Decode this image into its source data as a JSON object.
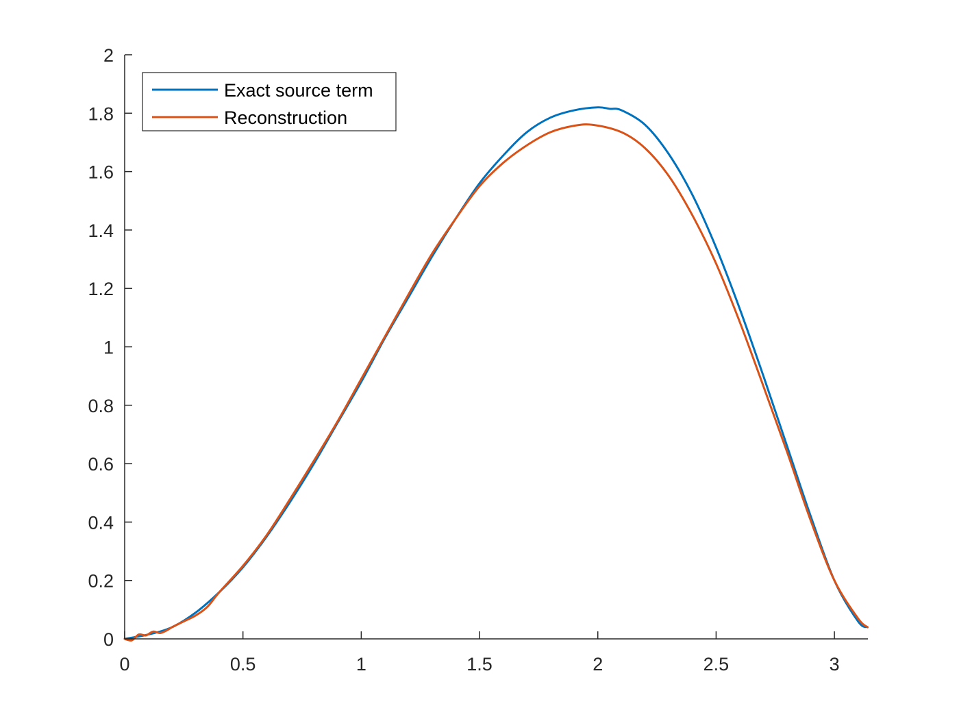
{
  "chart_data": {
    "type": "line",
    "title": "",
    "xlabel": "",
    "ylabel": "",
    "xlim": [
      0,
      3.1416
    ],
    "ylim": [
      0,
      2
    ],
    "xticks": [
      0,
      0.5,
      1,
      1.5,
      2,
      2.5,
      3
    ],
    "xtick_labels": [
      "0",
      "0.5",
      "1",
      "1.5",
      "2",
      "2.5",
      "3"
    ],
    "yticks": [
      0,
      0.2,
      0.4,
      0.6,
      0.8,
      1,
      1.2,
      1.4,
      1.6,
      1.8,
      2
    ],
    "ytick_labels": [
      "0",
      "0.2",
      "0.4",
      "0.6",
      "0.8",
      "1",
      "1.2",
      "1.4",
      "1.6",
      "1.8",
      "2"
    ],
    "grid": false,
    "legend_position": "top-left",
    "series": [
      {
        "name": "Exact source term",
        "color": "#0072BD",
        "x": [
          0,
          0.1,
          0.2,
          0.3,
          0.4,
          0.5,
          0.6,
          0.7,
          0.8,
          0.9,
          1.0,
          1.1,
          1.2,
          1.3,
          1.4,
          1.5,
          1.6,
          1.7,
          1.8,
          1.9,
          2.0,
          2.05,
          2.1,
          2.2,
          2.3,
          2.4,
          2.5,
          2.6,
          2.7,
          2.8,
          2.9,
          3.0,
          3.1,
          3.14
        ],
        "y": [
          0,
          0.015,
          0.04,
          0.09,
          0.16,
          0.245,
          0.35,
          0.47,
          0.6,
          0.74,
          0.88,
          1.03,
          1.17,
          1.31,
          1.44,
          1.56,
          1.655,
          1.735,
          1.785,
          1.81,
          1.82,
          1.815,
          1.81,
          1.76,
          1.66,
          1.52,
          1.34,
          1.13,
          0.9,
          0.66,
          0.42,
          0.2,
          0.06,
          0.04
        ]
      },
      {
        "name": "Reconstruction",
        "color": "#D95319",
        "x": [
          0,
          0.03,
          0.06,
          0.09,
          0.12,
          0.15,
          0.18,
          0.2,
          0.25,
          0.3,
          0.35,
          0.4,
          0.5,
          0.6,
          0.7,
          0.8,
          0.9,
          1.0,
          1.1,
          1.2,
          1.3,
          1.4,
          1.5,
          1.6,
          1.7,
          1.8,
          1.9,
          1.98,
          2.1,
          2.2,
          2.3,
          2.4,
          2.5,
          2.6,
          2.7,
          2.8,
          2.9,
          3.0,
          3.1,
          3.14
        ],
        "y": [
          0,
          -0.005,
          0.015,
          0.012,
          0.025,
          0.02,
          0.03,
          0.04,
          0.06,
          0.08,
          0.11,
          0.16,
          0.25,
          0.355,
          0.48,
          0.61,
          0.745,
          0.89,
          1.035,
          1.18,
          1.32,
          1.44,
          1.55,
          1.63,
          1.69,
          1.735,
          1.757,
          1.76,
          1.735,
          1.68,
          1.585,
          1.45,
          1.285,
          1.085,
          0.865,
          0.64,
          0.405,
          0.2,
          0.07,
          0.04
        ]
      }
    ]
  }
}
